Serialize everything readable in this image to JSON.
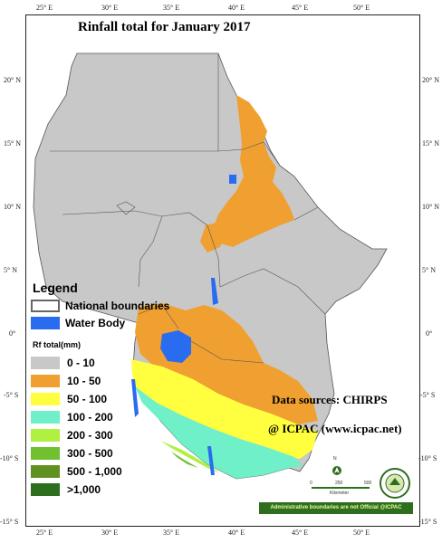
{
  "title": "Rinfall total  for  January 2017",
  "longitude_ticks": [
    "25° E",
    "30° E",
    "35° E",
    "40° E",
    "45° E",
    "50° E"
  ],
  "latitude_ticks": [
    "20° N",
    "15° N",
    "10° N",
    "5° N",
    "0°",
    "-5° S",
    "-10° S",
    "-15° S"
  ],
  "legend": {
    "title": "Legend",
    "national_boundaries": "National boundaries",
    "water_body": "Water Body",
    "rf_title": "Rf total(mm)",
    "classes": [
      {
        "label": "0 - 10",
        "color": "#c8c8c8"
      },
      {
        "label": "10 - 50",
        "color": "#f0a030"
      },
      {
        "label": "50 - 100",
        "color": "#ffff40"
      },
      {
        "label": "100 - 200",
        "color": "#70f0c8"
      },
      {
        "label": "200 - 300",
        "color": "#b0f040"
      },
      {
        "label": "300 - 500",
        "color": "#70c030"
      },
      {
        "label": "500 - 1,000",
        "color": "#609020"
      },
      {
        "label": ">1,000",
        "color": "#2e6e1f"
      }
    ],
    "water_color": "#2a6cf0"
  },
  "data_sources": "Data sources: CHIRPS",
  "credit": "@ ICPAC (www.icpac.net)",
  "scale_bar": {
    "labels": [
      "0",
      "250",
      "500"
    ],
    "unit": "Kilometer"
  },
  "north_arrow": "N",
  "disclaimer": "Administrative boundaries are not Official  @ICPAC"
}
